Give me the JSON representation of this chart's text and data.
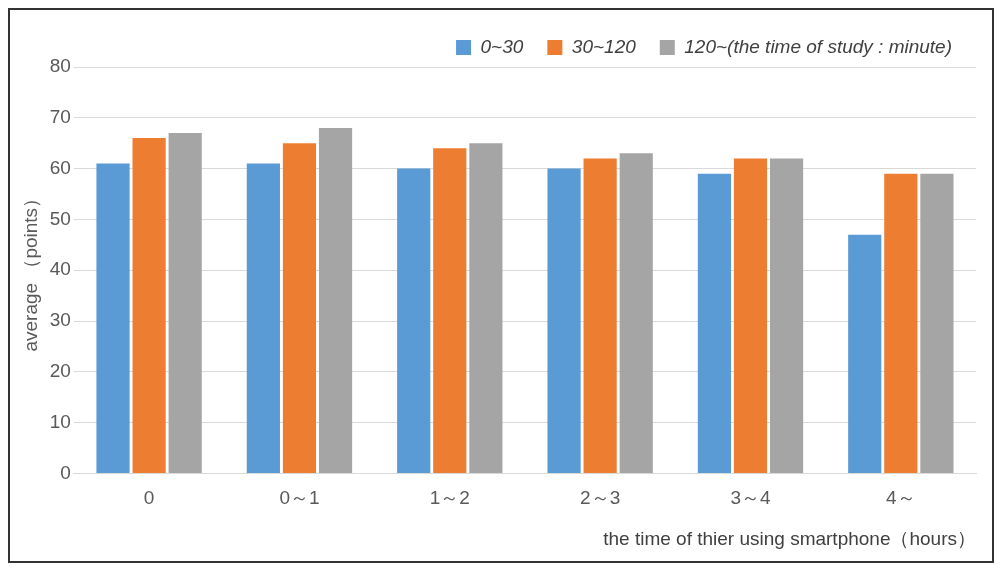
{
  "chart_data": {
    "type": "bar",
    "xlabel": "the time of thier using smartphone（hours）",
    "ylabel": "average （points）",
    "legend": "top right",
    "grid": "y",
    "ylim": [
      0,
      80
    ],
    "yticks": [
      0,
      10,
      20,
      30,
      40,
      50,
      60,
      70,
      80
    ],
    "categories": [
      "0",
      "0～1",
      "1～2",
      "2～3",
      "3～4",
      "4～"
    ],
    "series": [
      {
        "name": "0~30",
        "color": "#5b9bd5",
        "values": [
          61,
          61,
          60,
          60,
          59,
          47
        ]
      },
      {
        "name": "30~120",
        "color": "#ed7d31",
        "values": [
          66,
          65,
          64,
          62,
          62,
          59
        ]
      },
      {
        "name": "120~(the time of study : minute)",
        "color": "#a5a5a5",
        "values": [
          67,
          68,
          65,
          63,
          62,
          59
        ]
      }
    ]
  }
}
